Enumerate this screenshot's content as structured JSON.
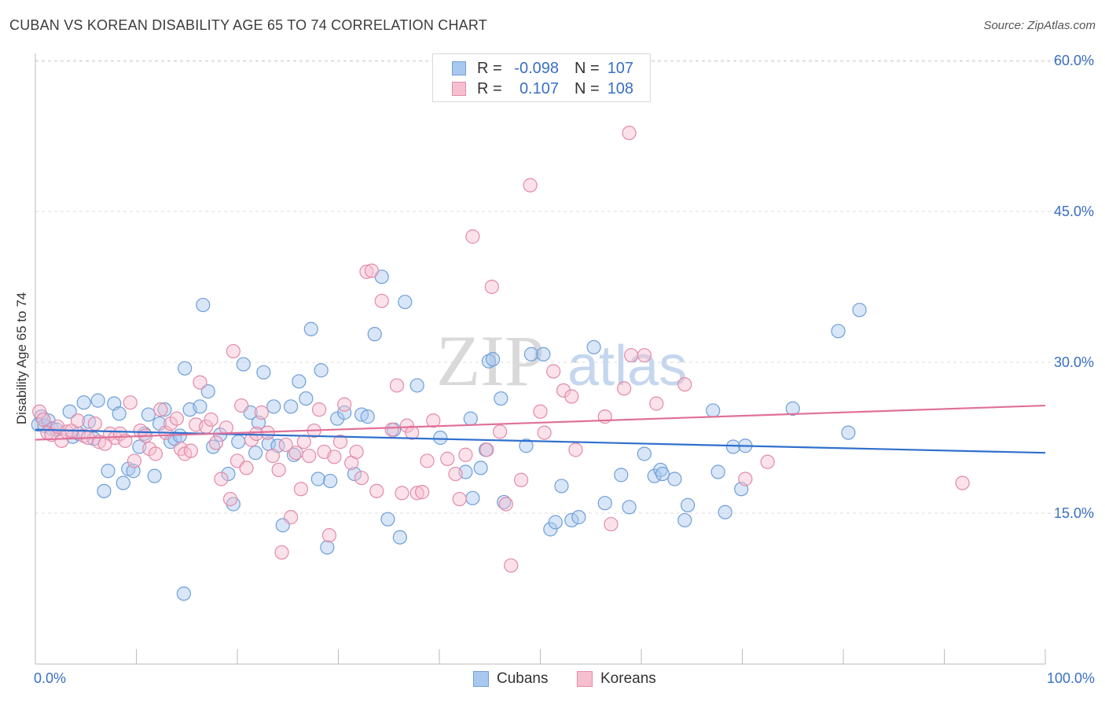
{
  "title": "CUBAN VS KOREAN DISABILITY AGE 65 TO 74 CORRELATION CHART",
  "source": "Source: ZipAtlas.com",
  "watermark": {
    "zip": "ZIP",
    "atlas": "atlas"
  },
  "legend": {
    "rows": [
      {
        "r_label": "R =",
        "r_value": "-0.098",
        "n_label": "N =",
        "n_value": "107",
        "color": "#a9c8ef",
        "border": "#6f9fd8"
      },
      {
        "r_label": "R =",
        "r_value": "0.107",
        "n_label": "N =",
        "n_value": "108",
        "color": "#f6bfd0",
        "border": "#e38aa8"
      }
    ]
  },
  "bottom_legend": [
    {
      "label": "Cubans",
      "color": "#a9c8ef",
      "border": "#6f9fd8"
    },
    {
      "label": "Koreans",
      "color": "#f6bfd0",
      "border": "#e38aa8"
    }
  ],
  "chart_data": {
    "type": "scatter",
    "title": "CUBAN VS KOREAN DISABILITY AGE 65 TO 74 CORRELATION CHART",
    "xlabel": "",
    "ylabel": "Disability Age 65 to 74",
    "xlim": [
      0,
      100
    ],
    "ylim": [
      0,
      62
    ],
    "x_tick_labels": [
      "0.0%",
      "100.0%"
    ],
    "y_ticks": [
      15,
      30,
      45,
      60
    ],
    "y_tick_labels": [
      "15.0%",
      "30.0%",
      "45.0%",
      "60.0%"
    ],
    "grid": true,
    "legend_position": "top-center",
    "series": [
      {
        "name": "Cubans",
        "color": "#6f9fd8",
        "fill": "#a9c8ef",
        "trend": {
          "x": [
            0,
            100
          ],
          "y": [
            23.3,
            21.0
          ],
          "color": "#2f6fcc"
        },
        "points": [
          [
            0.3,
            23.8
          ],
          [
            0.6,
            24.6
          ],
          [
            0.9,
            23.7
          ],
          [
            1.3,
            24.2
          ],
          [
            1.6,
            23.4
          ],
          [
            2.1,
            23.3
          ],
          [
            3.4,
            25.1
          ],
          [
            3.7,
            22.6
          ],
          [
            4.3,
            22.9
          ],
          [
            4.8,
            26.0
          ],
          [
            5.3,
            24.1
          ],
          [
            5.8,
            22.4
          ],
          [
            6.2,
            26.2
          ],
          [
            6.8,
            17.2
          ],
          [
            7.2,
            19.2
          ],
          [
            7.8,
            25.9
          ],
          [
            8.3,
            24.9
          ],
          [
            8.7,
            18.0
          ],
          [
            9.2,
            19.4
          ],
          [
            9.7,
            19.2
          ],
          [
            10.3,
            21.6
          ],
          [
            10.8,
            22.9
          ],
          [
            11.2,
            24.8
          ],
          [
            11.8,
            18.7
          ],
          [
            12.3,
            23.9
          ],
          [
            12.8,
            25.3
          ],
          [
            13.4,
            22.1
          ],
          [
            13.8,
            22.4
          ],
          [
            14.3,
            22.7
          ],
          [
            14.8,
            29.4
          ],
          [
            15.3,
            25.3
          ],
          [
            16.3,
            25.6
          ],
          [
            16.6,
            35.7
          ],
          [
            17.1,
            27.1
          ],
          [
            17.6,
            21.6
          ],
          [
            18.3,
            22.8
          ],
          [
            19.1,
            18.9
          ],
          [
            19.6,
            15.9
          ],
          [
            20.1,
            22.1
          ],
          [
            20.6,
            29.8
          ],
          [
            21.3,
            25.0
          ],
          [
            21.8,
            21.0
          ],
          [
            22.1,
            24.0
          ],
          [
            22.6,
            29.0
          ],
          [
            23.1,
            21.9
          ],
          [
            23.6,
            25.6
          ],
          [
            24.0,
            21.7
          ],
          [
            24.5,
            13.8
          ],
          [
            25.3,
            25.6
          ],
          [
            25.6,
            20.8
          ],
          [
            26.1,
            28.1
          ],
          [
            26.8,
            26.4
          ],
          [
            27.3,
            33.3
          ],
          [
            28.0,
            18.4
          ],
          [
            28.3,
            29.2
          ],
          [
            28.9,
            11.6
          ],
          [
            29.2,
            18.2
          ],
          [
            29.9,
            24.4
          ],
          [
            30.6,
            25.0
          ],
          [
            31.6,
            18.9
          ],
          [
            32.3,
            24.8
          ],
          [
            32.9,
            24.6
          ],
          [
            33.6,
            32.8
          ],
          [
            34.3,
            38.5
          ],
          [
            34.9,
            14.4
          ],
          [
            35.5,
            23.3
          ],
          [
            36.1,
            12.6
          ],
          [
            36.6,
            36.0
          ],
          [
            37.8,
            27.7
          ],
          [
            40.1,
            22.5
          ],
          [
            42.6,
            19.1
          ],
          [
            43.1,
            24.4
          ],
          [
            43.3,
            16.5
          ],
          [
            44.1,
            19.5
          ],
          [
            44.6,
            21.3
          ],
          [
            44.9,
            30.1
          ],
          [
            45.3,
            30.3
          ],
          [
            46.1,
            26.4
          ],
          [
            46.4,
            16.1
          ],
          [
            48.6,
            21.7
          ],
          [
            49.1,
            30.8
          ],
          [
            50.3,
            30.8
          ],
          [
            51.0,
            13.4
          ],
          [
            51.5,
            14.1
          ],
          [
            52.1,
            17.7
          ],
          [
            53.1,
            14.3
          ],
          [
            53.8,
            14.6
          ],
          [
            55.3,
            31.5
          ],
          [
            56.4,
            16.0
          ],
          [
            58.0,
            18.8
          ],
          [
            58.8,
            15.6
          ],
          [
            60.3,
            20.9
          ],
          [
            61.3,
            18.7
          ],
          [
            61.9,
            19.3
          ],
          [
            62.1,
            18.9
          ],
          [
            63.3,
            18.4
          ],
          [
            64.3,
            14.3
          ],
          [
            64.6,
            15.8
          ],
          [
            67.1,
            25.2
          ],
          [
            67.6,
            19.1
          ],
          [
            68.3,
            15.1
          ],
          [
            69.1,
            21.6
          ],
          [
            69.9,
            17.4
          ],
          [
            70.3,
            21.7
          ],
          [
            75.0,
            25.4
          ],
          [
            79.5,
            33.1
          ],
          [
            80.5,
            23.0
          ],
          [
            81.6,
            35.2
          ],
          [
            14.7,
            7.0
          ]
        ]
      },
      {
        "name": "Koreans",
        "color": "#e38aa8",
        "fill": "#f6bfd0",
        "trend": {
          "x": [
            0,
            100
          ],
          "y": [
            22.3,
            25.7
          ],
          "color": "#e07098"
        },
        "points": [
          [
            0.4,
            25.1
          ],
          [
            0.8,
            24.3
          ],
          [
            1.2,
            23.0
          ],
          [
            1.6,
            22.8
          ],
          [
            2.2,
            23.6
          ],
          [
            2.6,
            22.2
          ],
          [
            3.1,
            23.1
          ],
          [
            3.6,
            23.2
          ],
          [
            4.2,
            24.2
          ],
          [
            4.8,
            22.7
          ],
          [
            5.2,
            22.5
          ],
          [
            5.9,
            23.9
          ],
          [
            6.3,
            22.1
          ],
          [
            6.9,
            21.9
          ],
          [
            7.4,
            22.9
          ],
          [
            7.9,
            22.5
          ],
          [
            8.4,
            22.9
          ],
          [
            8.9,
            22.2
          ],
          [
            9.4,
            26.0
          ],
          [
            9.8,
            20.2
          ],
          [
            10.4,
            23.2
          ],
          [
            10.9,
            22.7
          ],
          [
            11.3,
            21.4
          ],
          [
            11.9,
            20.9
          ],
          [
            12.4,
            25.3
          ],
          [
            12.9,
            23.0
          ],
          [
            13.4,
            23.9
          ],
          [
            14.0,
            24.4
          ],
          [
            14.4,
            21.4
          ],
          [
            14.8,
            20.9
          ],
          [
            15.4,
            21.2
          ],
          [
            15.9,
            23.8
          ],
          [
            16.3,
            28.0
          ],
          [
            16.9,
            23.6
          ],
          [
            17.4,
            24.3
          ],
          [
            17.9,
            22.0
          ],
          [
            18.4,
            18.4
          ],
          [
            18.9,
            23.5
          ],
          [
            19.3,
            16.4
          ],
          [
            19.6,
            31.1
          ],
          [
            20.0,
            20.2
          ],
          [
            20.4,
            25.7
          ],
          [
            20.9,
            19.5
          ],
          [
            21.4,
            22.3
          ],
          [
            21.9,
            22.9
          ],
          [
            22.4,
            25.0
          ],
          [
            23.0,
            23.0
          ],
          [
            23.5,
            20.7
          ],
          [
            24.1,
            19.3
          ],
          [
            24.4,
            11.1
          ],
          [
            24.8,
            21.8
          ],
          [
            25.3,
            14.6
          ],
          [
            25.8,
            21.0
          ],
          [
            26.3,
            17.4
          ],
          [
            26.6,
            22.1
          ],
          [
            27.1,
            20.7
          ],
          [
            27.6,
            23.2
          ],
          [
            28.1,
            25.3
          ],
          [
            28.6,
            21.1
          ],
          [
            29.1,
            12.8
          ],
          [
            29.6,
            20.6
          ],
          [
            30.2,
            22.1
          ],
          [
            30.6,
            25.8
          ],
          [
            31.3,
            20.0
          ],
          [
            31.8,
            21.1
          ],
          [
            32.3,
            18.5
          ],
          [
            32.8,
            39.0
          ],
          [
            33.3,
            39.1
          ],
          [
            33.8,
            17.2
          ],
          [
            34.3,
            36.1
          ],
          [
            35.3,
            23.3
          ],
          [
            35.8,
            27.7
          ],
          [
            36.3,
            17.0
          ],
          [
            36.8,
            23.7
          ],
          [
            37.3,
            23.0
          ],
          [
            37.8,
            17.0
          ],
          [
            38.3,
            17.1
          ],
          [
            38.8,
            20.2
          ],
          [
            39.4,
            24.2
          ],
          [
            40.8,
            20.4
          ],
          [
            41.6,
            18.9
          ],
          [
            42.0,
            16.4
          ],
          [
            42.6,
            20.8
          ],
          [
            43.3,
            42.5
          ],
          [
            44.7,
            21.3
          ],
          [
            45.2,
            37.5
          ],
          [
            46.0,
            23.1
          ],
          [
            46.6,
            15.9
          ],
          [
            47.1,
            9.8
          ],
          [
            48.1,
            18.3
          ],
          [
            49.0,
            47.6
          ],
          [
            50.0,
            25.1
          ],
          [
            50.4,
            23.0
          ],
          [
            51.3,
            29.1
          ],
          [
            52.3,
            27.2
          ],
          [
            53.1,
            26.6
          ],
          [
            53.5,
            21.3
          ],
          [
            56.4,
            24.6
          ],
          [
            57.0,
            13.9
          ],
          [
            58.3,
            27.4
          ],
          [
            59.0,
            30.7
          ],
          [
            60.3,
            30.7
          ],
          [
            61.5,
            25.9
          ],
          [
            64.3,
            27.8
          ],
          [
            70.3,
            18.4
          ],
          [
            72.5,
            20.1
          ],
          [
            91.8,
            18.0
          ],
          [
            58.8,
            52.8
          ]
        ]
      }
    ]
  }
}
